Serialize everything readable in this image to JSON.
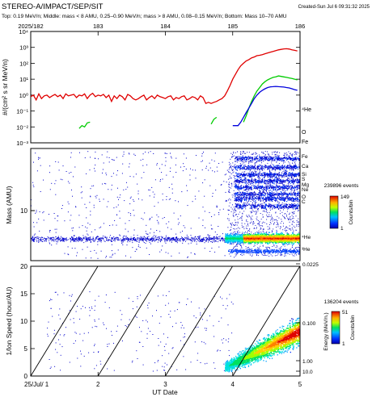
{
  "header": {
    "title": "STEREO-A/IMPACT/SEP/SIT",
    "created": "Created-Sun Jul  6 09:31:32 2025",
    "subtitle": "Top: 0.19 MeV/n; Middle: mass < 8 AMU, 0.25–0.90 MeV/n; mass > 8 AMU, 0.08–0.15 MeV/n; Bottom: Mass 10–70 AMU"
  },
  "colors": {
    "he4": "#e00000",
    "oxygen": "#00cc00",
    "fe": "#0000dd"
  },
  "chart_data": [
    {
      "type": "line",
      "panel": "top",
      "xlabel": "",
      "ylabel": "#/(cm² s sr MeV/n)",
      "x_top_ticks": [
        "2025/182",
        "183",
        "184",
        "185",
        "186"
      ],
      "ylim": [
        0.001,
        10000
      ],
      "y_scale": "log",
      "ytick_labels": [
        "10⁻³",
        "10⁻²",
        "10⁻¹",
        "10⁰",
        "10¹",
        "10²",
        "10³",
        "10⁴"
      ],
      "series": [
        {
          "name": "⁴He",
          "color": "#e00000",
          "x": [
            0.0,
            0.05,
            0.1,
            0.15,
            0.2,
            0.25,
            0.3,
            0.35,
            0.4,
            0.45,
            0.5,
            0.55,
            0.6,
            0.65,
            0.7,
            0.75,
            0.8,
            0.85,
            0.9,
            0.95,
            1.0,
            1.05,
            1.1,
            1.15,
            1.2,
            1.25,
            1.3,
            1.35,
            1.4,
            1.45,
            1.5,
            1.55,
            1.6,
            1.65,
            1.7,
            1.75,
            1.8,
            1.85,
            1.9,
            1.95,
            2.0,
            2.05,
            2.1,
            2.15,
            2.2,
            2.25,
            2.3,
            2.35,
            2.4,
            2.45,
            2.5,
            2.55,
            2.6,
            2.65,
            2.7,
            2.75,
            2.8,
            2.85,
            2.9,
            2.95,
            3.0,
            3.05,
            3.1,
            3.15,
            3.2,
            3.25,
            3.3,
            3.35,
            3.4,
            3.45,
            3.5,
            3.55,
            3.6,
            3.65,
            3.7,
            3.75,
            3.8,
            3.85,
            3.9,
            3.95,
            4.0,
            4.05,
            4.1,
            4.15,
            4.2,
            4.25,
            4.3,
            4.35,
            4.4,
            4.45,
            4.5,
            4.55,
            4.6,
            4.65,
            4.7,
            4.75,
            4.8,
            4.85,
            4.9,
            4.95
          ],
          "values": [
            0.8,
            1.0,
            0.5,
            1.2,
            0.6,
            0.9,
            1.0,
            0.7,
            0.9,
            1.1,
            0.8,
            1.0,
            0.6,
            1.2,
            0.9,
            1.0,
            1.1,
            0.7,
            1.0,
            0.9,
            1.2,
            0.6,
            1.0,
            1.3,
            0.8,
            1.0,
            0.9,
            1.1,
            0.7,
            1.0,
            0.4,
            0.9,
            0.6,
            1.0,
            0.8,
            0.5,
            1.1,
            0.9,
            0.6,
            0.5,
            0.6,
            0.8,
            1.0,
            0.5,
            0.7,
            0.9,
            0.6,
            1.0,
            0.8,
            0.7,
            0.6,
            0.8,
            0.9,
            0.5,
            0.7,
            0.6,
            0.8,
            0.9,
            0.5,
            0.6,
            0.8,
            0.7,
            0.5,
            0.9,
            0.7,
            0.3,
            0.35,
            0.3,
            0.35,
            0.4,
            0.5,
            0.6,
            0.9,
            1.8,
            4,
            10,
            20,
            40,
            70,
            100,
            140,
            170,
            220,
            250,
            300,
            320,
            350,
            400,
            450,
            500,
            560,
            620,
            700,
            750,
            800,
            820,
            780,
            700,
            650,
            600
          ]
        },
        {
          "name": "O",
          "color": "#00cc00",
          "x": [
            0.9,
            0.95,
            1.0,
            1.05,
            1.1,
            3.35,
            3.4,
            3.45,
            3.95,
            4.0,
            4.05,
            4.1,
            4.15,
            4.2,
            4.25,
            4.3,
            4.35,
            4.4,
            4.45,
            4.5,
            4.55,
            4.6,
            4.65,
            4.7,
            4.75,
            4.8,
            4.85,
            4.9,
            4.95
          ],
          "values": [
            0.008,
            0.012,
            0.01,
            0.018,
            0.02,
            0.015,
            0.03,
            0.04,
            0.02,
            0.05,
            0.15,
            0.4,
            0.9,
            1.8,
            3,
            5,
            7,
            9,
            11,
            13,
            14,
            16,
            15,
            14,
            13,
            12,
            11,
            10,
            9
          ]
        },
        {
          "name": "Fe",
          "color": "#0000dd",
          "x": [
            3.75,
            3.85,
            3.9,
            3.95,
            4.0,
            4.05,
            4.1,
            4.15,
            4.2,
            4.25,
            4.3,
            4.35,
            4.4,
            4.45,
            4.5,
            4.55,
            4.6,
            4.65,
            4.7,
            4.75,
            4.8,
            4.85,
            4.9,
            4.95
          ],
          "values": [
            0.012,
            0.012,
            0.02,
            0.04,
            0.08,
            0.15,
            0.3,
            0.6,
            1.0,
            1.5,
            2.0,
            2.5,
            3.0,
            3.3,
            3.4,
            3.5,
            3.4,
            3.3,
            3.2,
            3.0,
            2.8,
            2.5,
            2.2,
            2.0
          ]
        }
      ],
      "series_labels": [
        "⁴He",
        "O",
        "Fe"
      ]
    },
    {
      "type": "scatter",
      "panel": "middle",
      "ylabel": "Mass (AMU)",
      "y_scale": "log",
      "ytick_labels": [
        "10"
      ],
      "element_labels": [
        "Fe",
        "Ca",
        "Si",
        "S",
        "Mg",
        "Ne",
        "O",
        "C",
        "⁴He",
        "³He"
      ],
      "colorbar": {
        "title": "239896 events",
        "label": "Counts/bin",
        "min": "1",
        "max": "149"
      }
    },
    {
      "type": "scatter",
      "panel": "bottom",
      "xlabel": "UT Date",
      "ylabel": "1/Ion Speed (hour/AU)",
      "ylim": [
        0,
        20
      ],
      "ytick_labels": [
        "0",
        "5",
        "10",
        "15",
        "20"
      ],
      "xtick_labels": [
        "25/Jul/ 1",
        "2",
        "3",
        "4",
        "5"
      ],
      "right_axis_label": "Energy (MeV/n.)",
      "right_tick_labels": [
        "0.0225",
        "0.100",
        "1.00",
        "10.0"
      ],
      "colorbar": {
        "title": "136204 events",
        "label": "Counts/bin",
        "min": "1",
        "max": "51"
      }
    }
  ]
}
